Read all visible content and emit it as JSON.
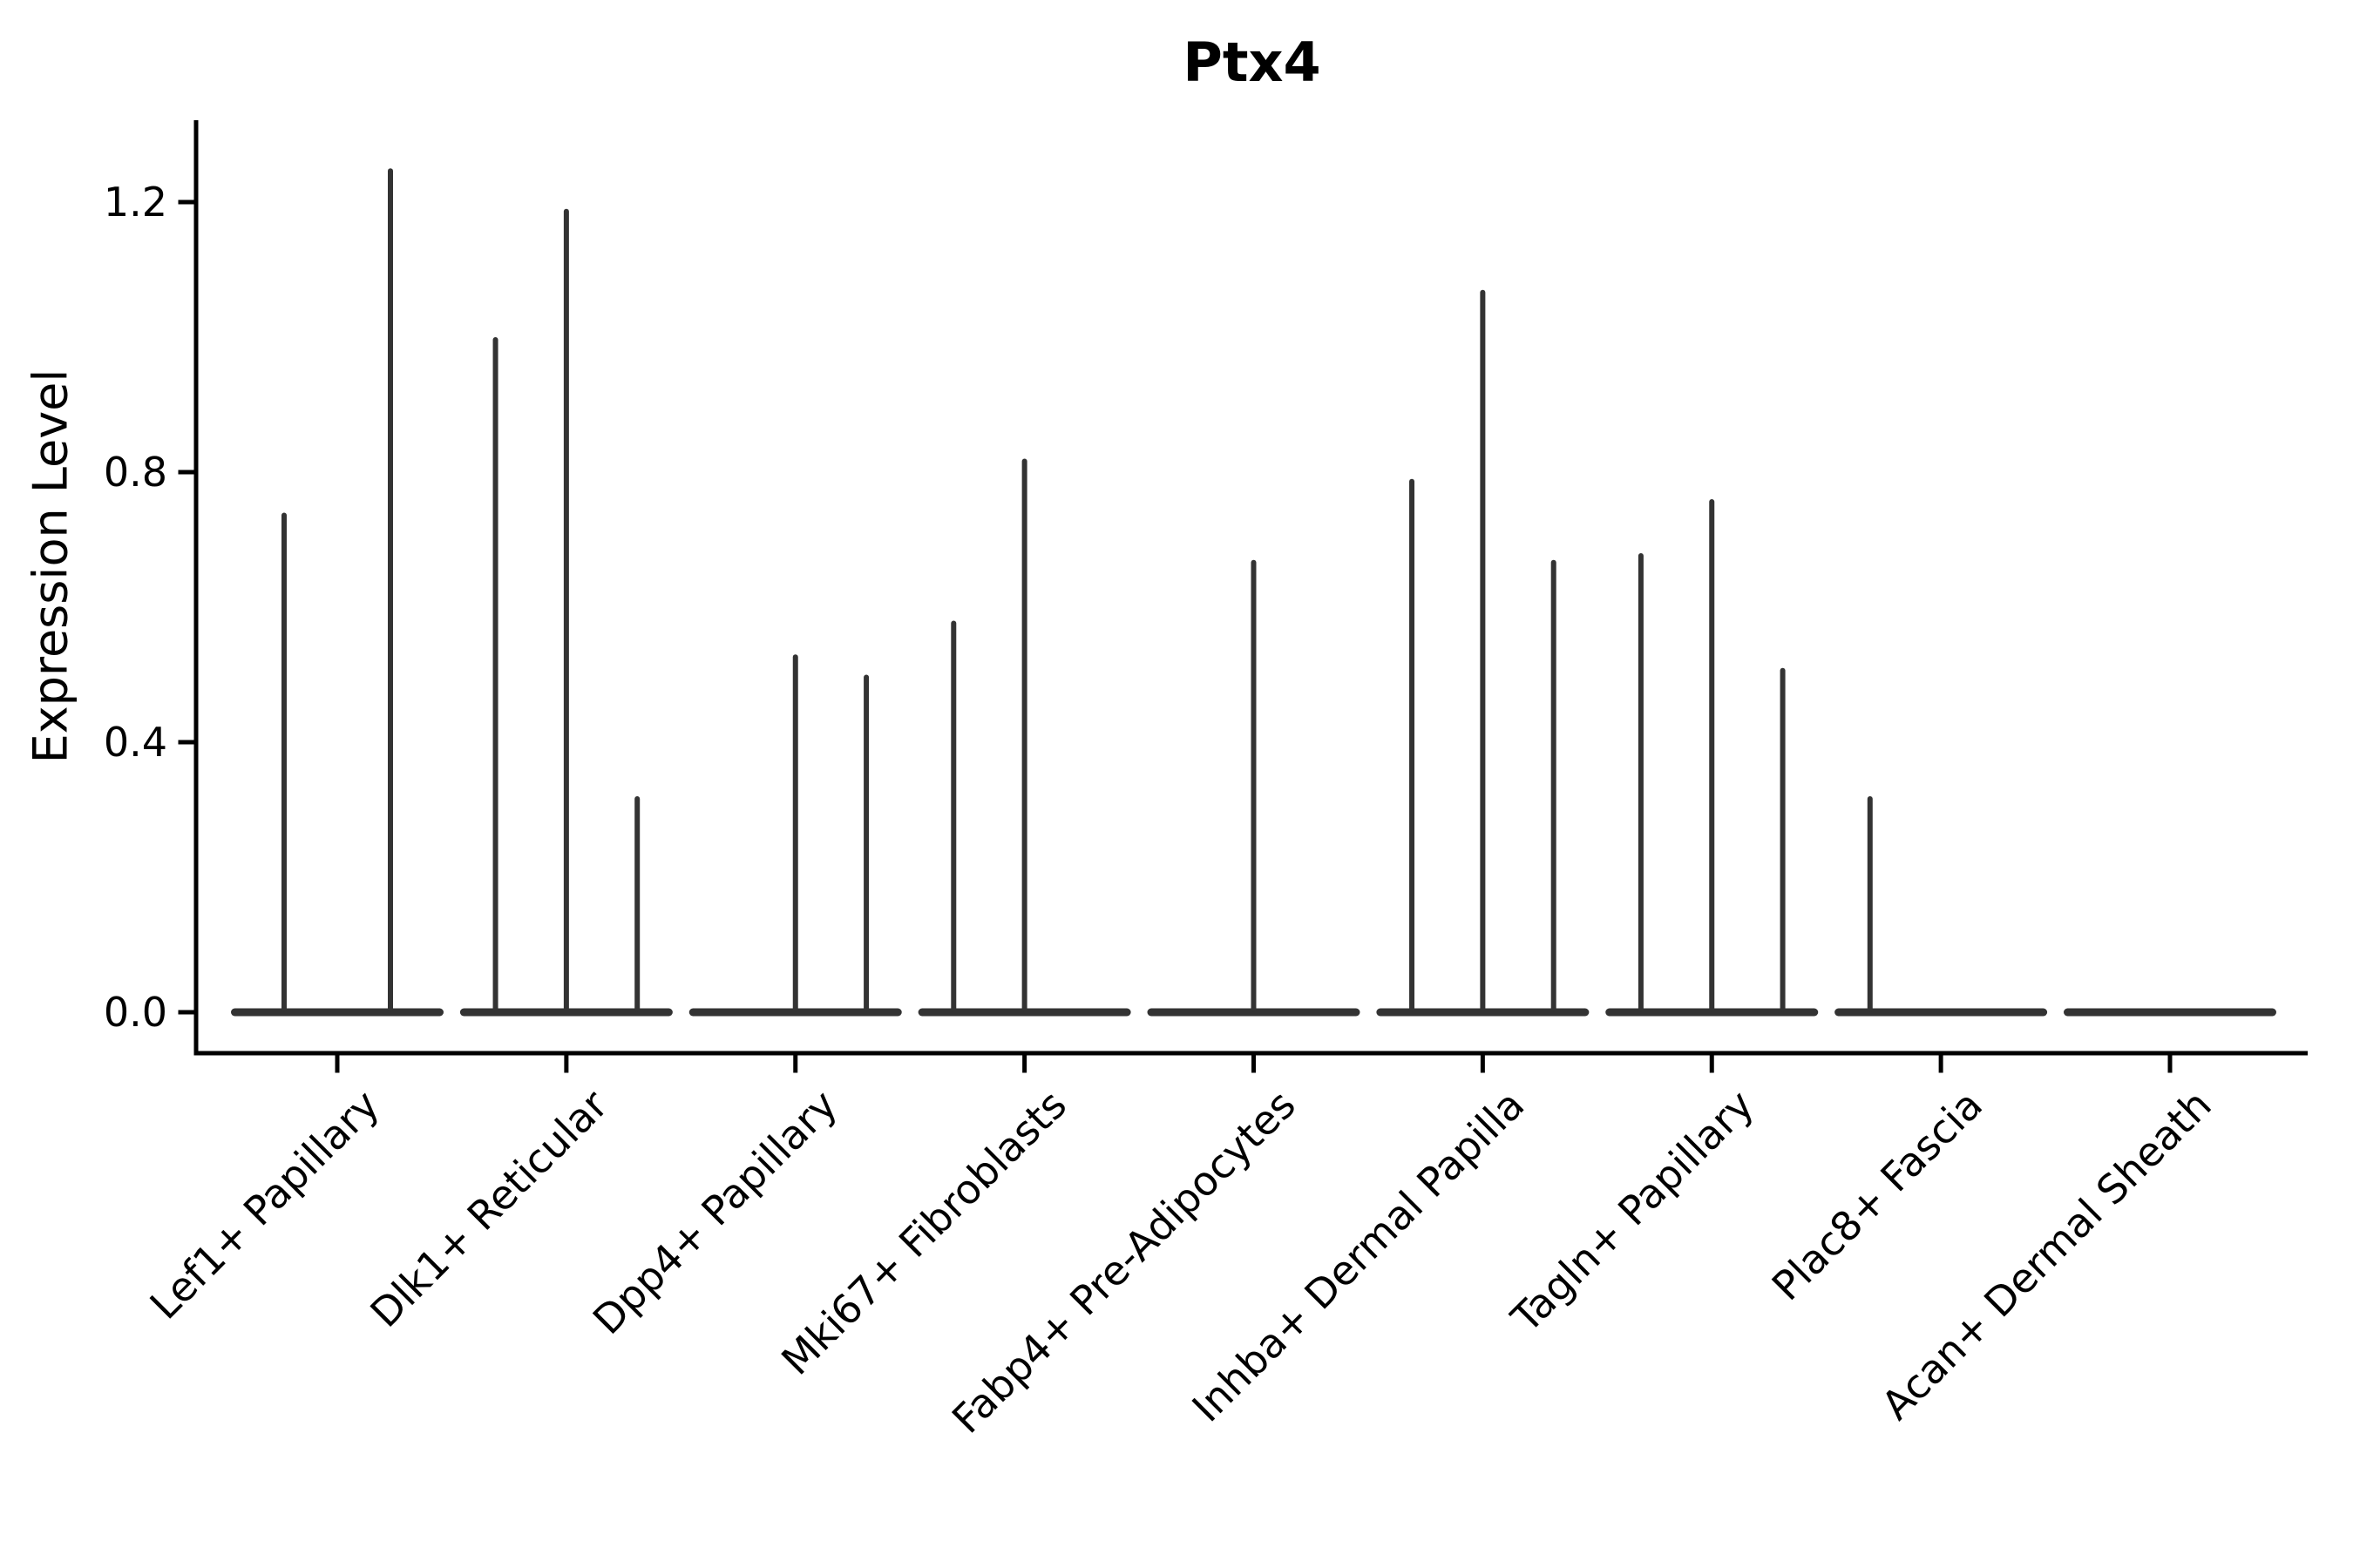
{
  "chart_data": {
    "type": "violin",
    "title": "Ptx4",
    "ylabel": "Expression Level",
    "xlabel": "",
    "grid": false,
    "legend": null,
    "ylim": [
      -0.06,
      1.32
    ],
    "yticks": [
      {
        "label": "0.0",
        "value": 0.0
      },
      {
        "label": "0.4",
        "value": 0.4
      },
      {
        "label": "0.8",
        "value": 0.8
      },
      {
        "label": "1.2",
        "value": 1.2
      }
    ],
    "x_tick_rotation_degrees": 45,
    "violin_note": "Each category shows 1-3 adjacent thin violins; bodies are flat at expression 0 and each violin has a needle spike up to its max expression value (0 = no spike).",
    "categories": [
      {
        "label": "Lef1+ Papillary",
        "violin_maxes": [
          0.74,
          1.25
        ]
      },
      {
        "label": "Dlk1+ Reticular",
        "violin_maxes": [
          1.0,
          1.19,
          0.32
        ]
      },
      {
        "label": "Dpp4+ Papillary",
        "violin_maxes": [
          0,
          0.53,
          0.5
        ]
      },
      {
        "label": "Mki67+ Fibroblasts",
        "violin_maxes": [
          0.58,
          0.82,
          0
        ]
      },
      {
        "label": "Fabp4+ Pre-Adipocytes",
        "violin_maxes": [
          0,
          0.67,
          0
        ]
      },
      {
        "label": "Inhba+ Dermal Papilla",
        "violin_maxes": [
          0.79,
          1.07,
          0.67
        ]
      },
      {
        "label": "Tagln+ Papillary",
        "violin_maxes": [
          0.68,
          0.76,
          0.51
        ]
      },
      {
        "label": "Plac8+ Fascia",
        "violin_maxes": [
          0.32,
          0,
          0
        ]
      },
      {
        "label": "Acan+ Dermal Sheath",
        "violin_maxes": [
          0
        ]
      }
    ],
    "colors": {
      "violin_fill": "#333333",
      "axis": "#000000",
      "text": "#000000",
      "background": "#ffffff"
    }
  }
}
